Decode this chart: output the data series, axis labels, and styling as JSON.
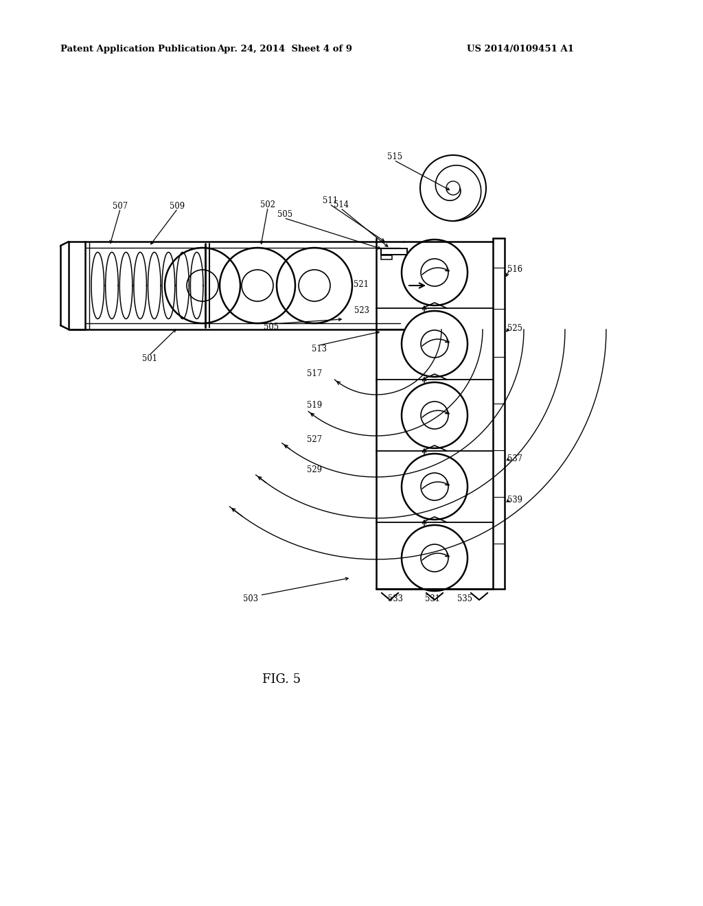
{
  "bg_color": "#ffffff",
  "header_left": "Patent Application Publication",
  "header_center": "Apr. 24, 2014  Sheet 4 of 9",
  "header_right": "US 2014/0109451 A1",
  "fig_label": "FIG. 5"
}
